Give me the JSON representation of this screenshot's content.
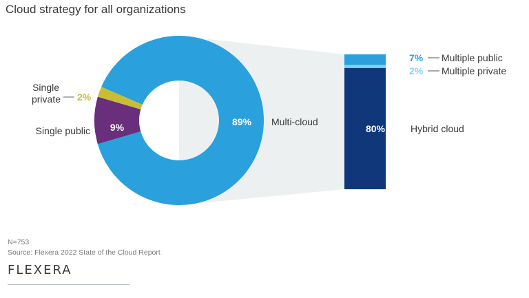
{
  "chart_data": {
    "type": "pie",
    "title": "Cloud strategy for all organizations",
    "donut": {
      "slices": [
        {
          "name": "Multi-cloud",
          "value": 89,
          "label": "89%",
          "color": "#2aa0dc"
        },
        {
          "name": "Single public",
          "value": 9,
          "label": "9%",
          "color": "#6a2f7c"
        },
        {
          "name": "Single private",
          "value": 2,
          "label": "2%",
          "color": "#c9bd36"
        }
      ],
      "labels": {
        "multi": "Multi-cloud",
        "single_public": "Single public",
        "single_private_line1": "Single",
        "single_private_line2": "private"
      }
    },
    "breakdown_bar": {
      "parent": "Multi-cloud",
      "segments": [
        {
          "name": "Multiple public",
          "value": 7,
          "label": "7%",
          "color": "#2aa0dc",
          "label_color": "#2aa0dc"
        },
        {
          "name": "Multiple private",
          "value": 2,
          "label": "2%",
          "color": "#7fd3f4",
          "label_color": "#7fd3f4"
        },
        {
          "name": "Hybrid cloud",
          "value": 80,
          "label": "80%",
          "color": "#10377a",
          "label_color": "#ffffff"
        }
      ]
    }
  },
  "footer": {
    "n": "N=753",
    "source": "Source: Flexera 2022 State of the Cloud Report",
    "logo": "FLEXERA"
  }
}
